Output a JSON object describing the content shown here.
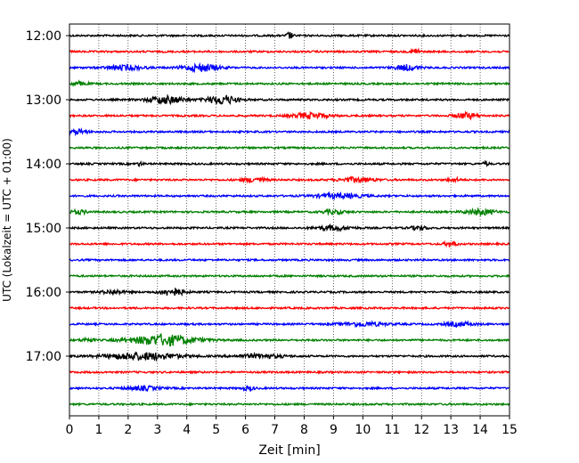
{
  "chart_data": {
    "type": "line",
    "title": "",
    "xlabel": "Zeit  [min]",
    "ylabel": "UTC (Lokalzeit = UTC + 01:00)",
    "xlim": [
      0,
      15
    ],
    "x_ticks": [
      "0",
      "1",
      "2",
      "3",
      "4",
      "5",
      "6",
      "7",
      "8",
      "9",
      "10",
      "11",
      "12",
      "13",
      "14",
      "15"
    ],
    "y_tick_labels": [
      "12:00",
      "13:00",
      "14:00",
      "15:00",
      "16:00",
      "17:00"
    ],
    "grid": "vertical dotted at each minute",
    "trace_interval_min": 15,
    "trace_colors": [
      "#000000",
      "#ff0000",
      "#0000ff",
      "#008000"
    ],
    "series": [
      {
        "start": "12:00",
        "bursts": [
          {
            "x": 7.5,
            "amp": 4,
            "w": 0.1
          }
        ]
      },
      {
        "start": "12:15",
        "bursts": [
          {
            "x": 11.8,
            "amp": 3,
            "w": 0.15
          }
        ]
      },
      {
        "start": "12:30",
        "bursts": [
          {
            "x": 4.5,
            "amp": 4,
            "w": 0.6
          },
          {
            "x": 11.5,
            "amp": 3,
            "w": 0.4
          },
          {
            "x": 1.9,
            "amp": 2.5,
            "w": 0.6
          }
        ]
      },
      {
        "start": "12:45",
        "bursts": [
          {
            "x": 0.3,
            "amp": 2,
            "w": 0.3
          }
        ]
      },
      {
        "start": "13:00",
        "bursts": [
          {
            "x": 3.3,
            "amp": 4,
            "w": 0.6
          },
          {
            "x": 5.2,
            "amp": 5,
            "w": 0.5
          }
        ]
      },
      {
        "start": "13:15",
        "bursts": [
          {
            "x": 8.2,
            "amp": 3,
            "w": 0.6
          },
          {
            "x": 13.5,
            "amp": 3,
            "w": 0.4
          }
        ]
      },
      {
        "start": "13:30",
        "bursts": [
          {
            "x": 0.3,
            "amp": 2.5,
            "w": 0.3
          }
        ]
      },
      {
        "start": "13:45",
        "bursts": []
      },
      {
        "start": "14:00",
        "bursts": [
          {
            "x": 2.4,
            "amp": 2,
            "w": 0.1
          },
          {
            "x": 14.2,
            "amp": 2,
            "w": 0.1
          }
        ]
      },
      {
        "start": "14:15",
        "bursts": [
          {
            "x": 6.3,
            "amp": 2.5,
            "w": 0.4
          },
          {
            "x": 9.8,
            "amp": 2.5,
            "w": 0.6
          },
          {
            "x": 13.1,
            "amp": 2,
            "w": 0.2
          }
        ]
      },
      {
        "start": "14:30",
        "bursts": [
          {
            "x": 9.2,
            "amp": 2.5,
            "w": 0.8
          }
        ]
      },
      {
        "start": "14:45",
        "bursts": [
          {
            "x": 0.3,
            "amp": 2,
            "w": 0.3
          },
          {
            "x": 9.0,
            "amp": 2,
            "w": 0.4
          },
          {
            "x": 14.0,
            "amp": 3,
            "w": 0.5
          }
        ]
      },
      {
        "start": "15:00",
        "bursts": [
          {
            "x": 9.0,
            "amp": 2.5,
            "w": 0.6
          },
          {
            "x": 11.9,
            "amp": 2,
            "w": 0.3
          }
        ]
      },
      {
        "start": "15:15",
        "bursts": [
          {
            "x": 13.0,
            "amp": 3,
            "w": 0.2
          }
        ]
      },
      {
        "start": "15:30",
        "bursts": []
      },
      {
        "start": "15:45",
        "bursts": []
      },
      {
        "start": "16:00",
        "bursts": [
          {
            "x": 3.5,
            "amp": 4,
            "w": 0.4
          },
          {
            "x": 1.5,
            "amp": 2,
            "w": 0.4
          }
        ]
      },
      {
        "start": "16:15",
        "bursts": []
      },
      {
        "start": "16:30",
        "bursts": [
          {
            "x": 10.0,
            "amp": 2,
            "w": 0.8
          },
          {
            "x": 13.3,
            "amp": 2,
            "w": 0.5
          }
        ]
      },
      {
        "start": "16:45",
        "bursts": [
          {
            "x": 3.2,
            "amp": 6,
            "w": 1.1
          },
          {
            "x": 0.6,
            "amp": 2,
            "w": 0.2
          }
        ]
      },
      {
        "start": "17:00",
        "bursts": [
          {
            "x": 2.5,
            "amp": 4,
            "w": 1.2
          },
          {
            "x": 6.5,
            "amp": 2,
            "w": 0.8
          }
        ]
      },
      {
        "start": "17:15",
        "bursts": []
      },
      {
        "start": "17:30",
        "bursts": [
          {
            "x": 2.5,
            "amp": 2,
            "w": 0.6
          },
          {
            "x": 6.1,
            "amp": 2,
            "w": 0.2
          }
        ]
      },
      {
        "start": "17:45",
        "bursts": []
      }
    ]
  }
}
